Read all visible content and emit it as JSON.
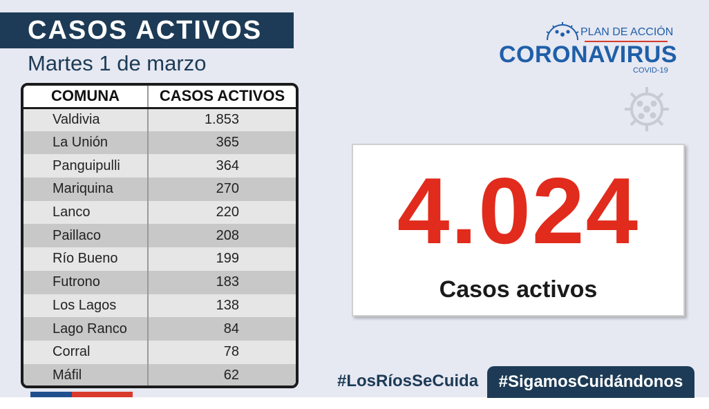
{
  "header": {
    "title": "CASOS ACTIVOS",
    "date": "Martes 1 de marzo"
  },
  "table": {
    "columns": [
      "COMUNA",
      "CASOS ACTIVOS"
    ],
    "rows": [
      {
        "comuna": "Valdivia",
        "casos": "1.853"
      },
      {
        "comuna": "La Unión",
        "casos": "365"
      },
      {
        "comuna": "Panguipulli",
        "casos": "364"
      },
      {
        "comuna": "Mariquina",
        "casos": "270"
      },
      {
        "comuna": "Lanco",
        "casos": "220"
      },
      {
        "comuna": "Paillaco",
        "casos": "208"
      },
      {
        "comuna": "Río Bueno",
        "casos": "199"
      },
      {
        "comuna": "Futrono",
        "casos": "183"
      },
      {
        "comuna": "Los Lagos",
        "casos": "138"
      },
      {
        "comuna": "Lago Ranco",
        "casos": "84"
      },
      {
        "comuna": "Corral",
        "casos": "78"
      },
      {
        "comuna": "Máfil",
        "casos": "62"
      }
    ]
  },
  "logo": {
    "plan": "PLAN DE ACCIÓN",
    "name": "CORONAVIRUS",
    "sub": "COVID-19",
    "icon": "virus-icon"
  },
  "total": {
    "value": "4.024",
    "label": "Casos activos"
  },
  "hashtags": {
    "left": "#LosRíosSeCuida",
    "right": "#SigamosCuidándonos"
  },
  "colors": {
    "navy": "#1d3b56",
    "accent_red": "#e12b1c",
    "brand_blue": "#1f5fa8"
  }
}
